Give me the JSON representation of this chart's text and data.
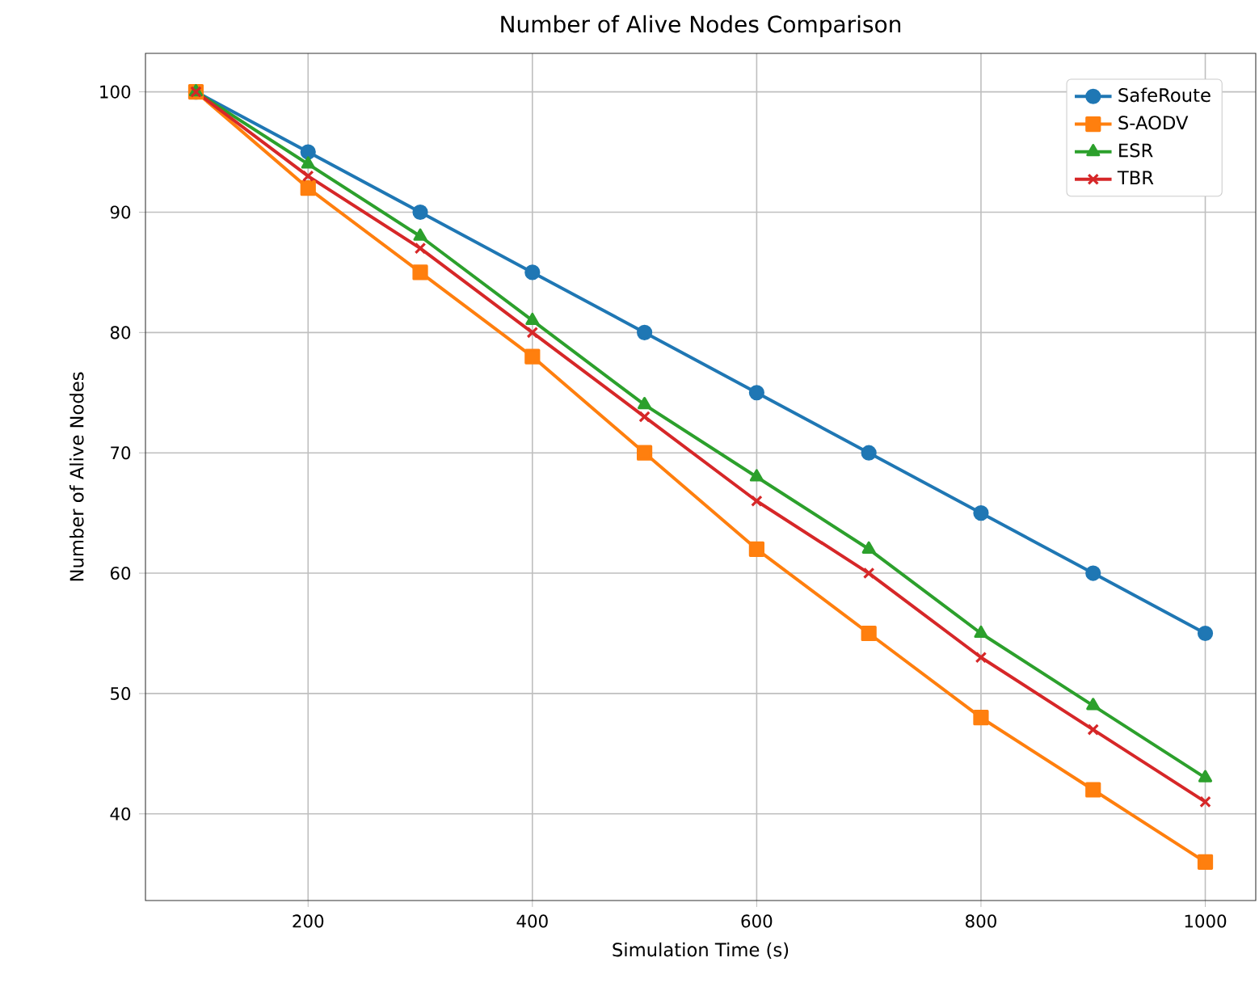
{
  "chart_data": {
    "type": "line",
    "title": "Number of Alive Nodes Comparison",
    "xlabel": "Simulation Time (s)",
    "ylabel": "Number of Alive Nodes",
    "x": [
      100,
      200,
      300,
      400,
      500,
      600,
      700,
      800,
      900,
      1000
    ],
    "series": [
      {
        "name": "SafeRoute",
        "color": "#1f77b4",
        "marker": "circle",
        "values": [
          100,
          95,
          90,
          85,
          80,
          75,
          70,
          65,
          60,
          55
        ]
      },
      {
        "name": "S-AODV",
        "color": "#ff7f0e",
        "marker": "square",
        "values": [
          100,
          92,
          85,
          78,
          70,
          62,
          55,
          48,
          42,
          36
        ]
      },
      {
        "name": "ESR",
        "color": "#2ca02c",
        "marker": "triangle",
        "values": [
          100,
          94,
          88,
          81,
          74,
          68,
          62,
          55,
          49,
          43
        ]
      },
      {
        "name": "TBR",
        "color": "#d62728",
        "marker": "cross",
        "values": [
          100,
          93,
          87,
          80,
          73,
          66,
          60,
          53,
          47,
          41
        ]
      }
    ],
    "xlim": [
      55,
      1045
    ],
    "ylim": [
      32.8,
      103.2
    ],
    "xticks": [
      200,
      400,
      600,
      800,
      1000
    ],
    "yticks": [
      40,
      50,
      60,
      70,
      80,
      90,
      100
    ],
    "grid": true,
    "legend": "top right",
    "line_style": "solid"
  }
}
